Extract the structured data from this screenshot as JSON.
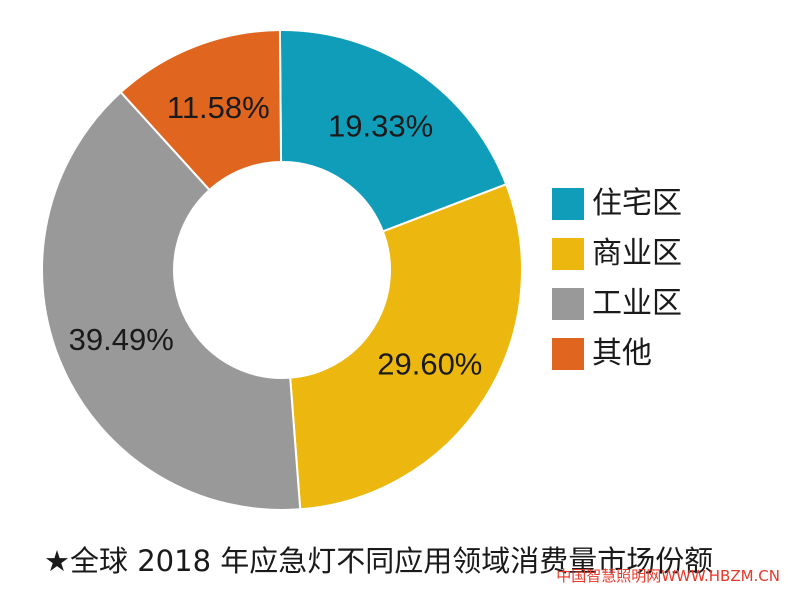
{
  "chart_data": {
    "type": "pie",
    "title": "",
    "slices": [
      {
        "label": "住宅区",
        "value": 19.33,
        "display": "19.33%",
        "color": "#0f9dba"
      },
      {
        "label": "商业区",
        "value": 29.6,
        "display": "29.60%",
        "color": "#ecb810"
      },
      {
        "label": "工业区",
        "value": 39.49,
        "display": "39.49%",
        "color": "#999999"
      },
      {
        "label": "其他",
        "value": 11.58,
        "display": "11.58%",
        "color": "#e0651f"
      }
    ],
    "legend_position": "right",
    "donut": true
  },
  "caption": "★全球 2018 年应急灯不同应用领域消费量市场份额",
  "watermark": "中国智慧照明网WWW.HBZM.CN"
}
